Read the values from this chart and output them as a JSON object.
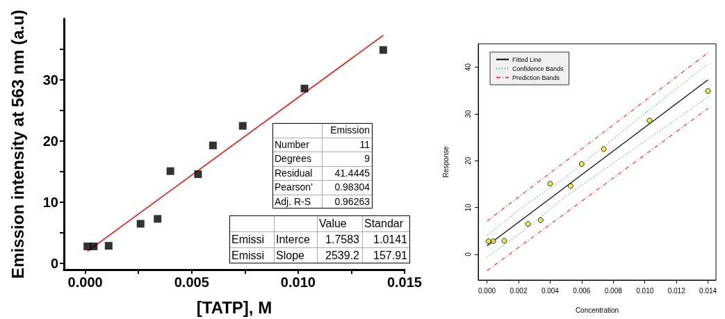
{
  "chart_data": [
    {
      "type": "scatter",
      "xlabel": "[TATP], M",
      "ylabel": "Emission intensity at 563 nm (a.u)",
      "x": [
        0.0001,
        0.0004,
        0.0011,
        0.0026,
        0.0034,
        0.004,
        0.0053,
        0.006,
        0.0074,
        0.0103,
        0.014
      ],
      "series": [
        {
          "color": "#000000",
          "marker": "square",
          "values": [
            2.8,
            2.8,
            2.9,
            6.5,
            7.3,
            15.1,
            14.6,
            19.3,
            22.5,
            28.6,
            34.9
          ]
        },
        {
          "type": "line",
          "color": "#ff0000",
          "marker": "none",
          "line_style": "solid",
          "x": [
            0.0001,
            0.014
          ],
          "values": [
            2.0,
            37.3
          ]
        }
      ],
      "xlim": [
        -0.001,
        0.015
      ],
      "xticks": [
        {
          "value": 0,
          "label": "0.000"
        },
        {
          "value": 0.0025,
          "label": null
        },
        {
          "value": 0.005,
          "label": "0.005"
        },
        {
          "value": 0.0075,
          "label": null
        },
        {
          "value": 0.01,
          "label": "0.010"
        },
        {
          "value": 0.0125,
          "label": null
        },
        {
          "value": 0.015,
          "label": "0.015"
        }
      ],
      "ylim": [
        -1,
        40
      ],
      "yticks": [
        0,
        {
          "value": 5,
          "label": null
        },
        10,
        {
          "value": 15,
          "label": null
        },
        20,
        {
          "value": 25,
          "label": null
        },
        30,
        {
          "value": 35,
          "label": null
        }
      ],
      "grid": false,
      "legend": false,
      "annotations": [
        "Emission",
        "Number",
        "11",
        "Degrees",
        "9",
        "Residual",
        "41.4445",
        "Pearson'",
        "0.98304",
        "Adj. R-S",
        "0.96263",
        "Value",
        "Standar",
        "Emissi",
        "Interce",
        "1.7583",
        "1.0141",
        "Emissi",
        "Slope",
        "2539.2",
        "157.91"
      ]
    },
    {
      "type": "scatter",
      "xlabel": "Concentration",
      "ylabel": "Response",
      "x": [
        0.0001,
        0.0004,
        0.0011,
        0.0026,
        0.0034,
        0.004,
        0.0053,
        0.006,
        0.0074,
        0.0103,
        0.014
      ],
      "series": [
        {
          "color": "#e6e62e",
          "marker": "circle",
          "values": [
            2.8,
            2.8,
            2.9,
            6.5,
            7.3,
            15.1,
            14.6,
            19.3,
            22.5,
            28.6,
            34.9
          ]
        },
        {
          "name": "Fitted Line",
          "type": "line",
          "color": "#000000",
          "marker": "none",
          "line_style": "solid",
          "x": [
            0,
            0.014
          ],
          "values": [
            1.8,
            37.3
          ]
        },
        {
          "name": "Confidence Bands",
          "type": "line",
          "color": "#339966",
          "marker": "none",
          "line_style": "dotted",
          "x": [
            0,
            0.0025,
            0.0049,
            0.0095,
            0.014
          ],
          "values": [
            4.0,
            10.7,
            16.2,
            28.8,
            40.7
          ]
        },
        {
          "type": "line",
          "color": "#339966",
          "marker": "none",
          "line_style": "dotted",
          "x": [
            0,
            0.0025,
            0.0049,
            0.0095,
            0.014
          ],
          "values": [
            -0.6,
            5.5,
            12.2,
            23.0,
            33.6
          ]
        },
        {
          "name": "Prediction Bands",
          "type": "line",
          "color": "#ff3333",
          "marker": "none",
          "line_style": "dashed",
          "x": [
            0,
            0.014
          ],
          "values": [
            7.1,
            43.1
          ]
        },
        {
          "type": "line",
          "color": "#ff3333",
          "marker": "none",
          "line_style": "dashed",
          "x": [
            0,
            0.014
          ],
          "values": [
            -3.5,
            31.2
          ]
        }
      ],
      "xlim": [
        -0.00055,
        0.0145
      ],
      "xticks": [
        {
          "value": 0,
          "label": "0.000"
        },
        {
          "value": 0.002,
          "label": "0.002"
        },
        {
          "value": 0.004,
          "label": "0.004"
        },
        {
          "value": 0.006,
          "label": "0.006"
        },
        {
          "value": 0.008,
          "label": "0.008"
        },
        {
          "value": 0.01,
          "label": "0.010"
        },
        {
          "value": 0.012,
          "label": "0.012"
        },
        {
          "value": 0.014,
          "label": "0.014"
        }
      ],
      "ylim": [
        -5.5,
        45
      ],
      "yticks": [
        0,
        10,
        20,
        30,
        40
      ],
      "grid": false,
      "legend": "top left"
    }
  ]
}
